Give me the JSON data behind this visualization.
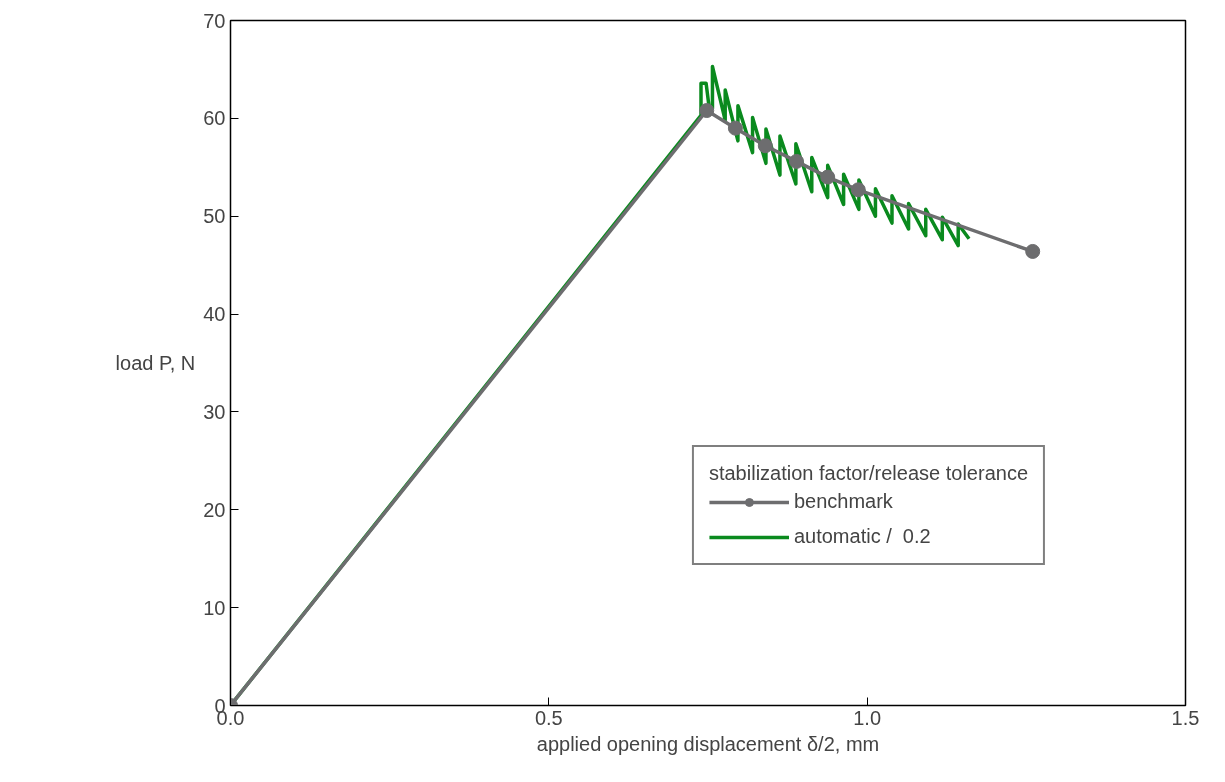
{
  "chart_data": {
    "type": "line",
    "xlabel": "applied opening displacement δ/2, mm",
    "ylabel": "load P, N",
    "legend_title": "stabilization factor/release tolerance",
    "xlim": [
      0,
      1.5
    ],
    "ylim": [
      0,
      70
    ],
    "xticks": [
      {
        "value": 0,
        "label": "0.0"
      },
      {
        "value": 0.5,
        "label": "0.5"
      },
      {
        "value": 1,
        "label": "1.0"
      },
      {
        "value": 1.5,
        "label": "1.5"
      }
    ],
    "yticks": [
      0,
      10,
      20,
      30,
      40,
      50,
      60,
      70
    ],
    "grid": false,
    "legend": "bottom right",
    "series": [
      {
        "name": "benchmark",
        "color": "#6d6d6f",
        "marker": "circle",
        "x": [
          0,
          0.748,
          0.793,
          0.84,
          0.889,
          0.938,
          0.986,
          1.26
        ],
        "values": [
          0,
          60.8,
          59.0,
          57.2,
          55.6,
          54.0,
          52.7,
          46.4
        ]
      },
      {
        "name": "automatic /  0.2",
        "color": "#0a8a1e",
        "marker": "none",
        "x": [
          0,
          0.739,
          0.739,
          0.747,
          0.752,
          0.757,
          0.757,
          0.777,
          0.777,
          0.797,
          0.797,
          0.82,
          0.82,
          0.841,
          0.841,
          0.863,
          0.863,
          0.888,
          0.888,
          0.913,
          0.913,
          0.938,
          0.938,
          0.963,
          0.963,
          0.987,
          0.987,
          1.013,
          1.013,
          1.039,
          1.039,
          1.065,
          1.065,
          1.092,
          1.092,
          1.118,
          1.118,
          1.143,
          1.143,
          1.16
        ],
        "values": [
          0,
          60.3,
          63.6,
          63.6,
          61.0,
          61.0,
          65.3,
          59.8,
          62.9,
          57.7,
          61.3,
          56.5,
          60.1,
          55.4,
          58.9,
          54.2,
          58.2,
          53.3,
          57.4,
          52.5,
          56.0,
          51.9,
          55.2,
          51.2,
          54.3,
          50.7,
          53.7,
          50.0,
          52.8,
          49.3,
          52.1,
          48.7,
          51.3,
          48.0,
          50.7,
          47.6,
          49.9,
          47.0,
          49.2,
          47.7
        ]
      }
    ]
  }
}
